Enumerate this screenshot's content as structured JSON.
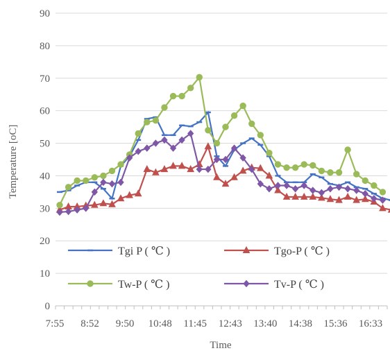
{
  "chart_data": {
    "type": "line",
    "xlabel": "Time",
    "ylabel": "Temperature [oC]",
    "ylim": [
      0,
      90
    ],
    "yticks": [
      "0",
      "10",
      "20",
      "30",
      "40",
      "50",
      "60",
      "70",
      "80",
      "90"
    ],
    "x_tick_labels": [
      "7:55",
      "8:52",
      "9:50",
      "10:48",
      "11:45",
      "12:43",
      "13:40",
      "14:38",
      "15:36",
      "16:33"
    ],
    "grid": "horizontal",
    "legend_placement": "bottom-inside",
    "series": [
      {
        "name": "Tgi P ( ℃ )",
        "color": "#4472C4",
        "marker": "dash",
        "values": [
          35,
          35.5,
          37,
          38,
          38,
          36,
          33,
          43,
          46,
          51,
          57.5,
          58,
          52.5,
          52.5,
          55.5,
          55.2,
          56.5,
          59.5,
          46,
          43,
          48,
          50,
          51.5,
          49.5,
          46,
          40,
          38,
          38,
          38,
          40.5,
          39.5,
          37.5,
          37,
          38,
          36.5,
          36,
          34.5,
          33,
          32.5
        ]
      },
      {
        "name": "Tgo-P ( ℃ )",
        "color": "#C0504D",
        "marker": "triangle",
        "values": [
          29.5,
          30.5,
          30.5,
          30.8,
          31,
          31.5,
          31.2,
          33,
          34,
          34.5,
          42,
          41,
          42,
          43,
          43,
          42,
          43.5,
          49,
          39.5,
          37.5,
          39.5,
          41.5,
          42.5,
          42.3,
          40,
          35.5,
          33.5,
          33.5,
          33.5,
          33.5,
          33.2,
          32.8,
          32.5,
          33.5,
          32.5,
          32.8,
          32,
          30,
          29.5
        ]
      },
      {
        "name": "Tw-P ( ℃ )",
        "color": "#9BBB59",
        "marker": "circle",
        "values": [
          31,
          36.5,
          38.5,
          38.5,
          39.5,
          40,
          41.5,
          43.5,
          46.5,
          53,
          56.5,
          57,
          61,
          64.5,
          64.5,
          67,
          70.3,
          54,
          50,
          55,
          58.5,
          61.5,
          56,
          52.5,
          47,
          43.5,
          42.5,
          42.5,
          43.5,
          43.2,
          41.5,
          41,
          41,
          48,
          40.5,
          38.5,
          37,
          35
        ]
      },
      {
        "name": "Tv-P ( ℃ )",
        "color": "#7E57A6",
        "marker": "diamond",
        "values": [
          28.8,
          29,
          29.5,
          30,
          35,
          38,
          37.5,
          38,
          45.5,
          47.5,
          48.5,
          50,
          51,
          48.5,
          51,
          53,
          42,
          42,
          45,
          45,
          48.5,
          45.5,
          42,
          37.5,
          36,
          37,
          37,
          36,
          37,
          35.5,
          34.8,
          36,
          36.5,
          36,
          35.5,
          34.5,
          33,
          32.5
        ]
      }
    ]
  }
}
